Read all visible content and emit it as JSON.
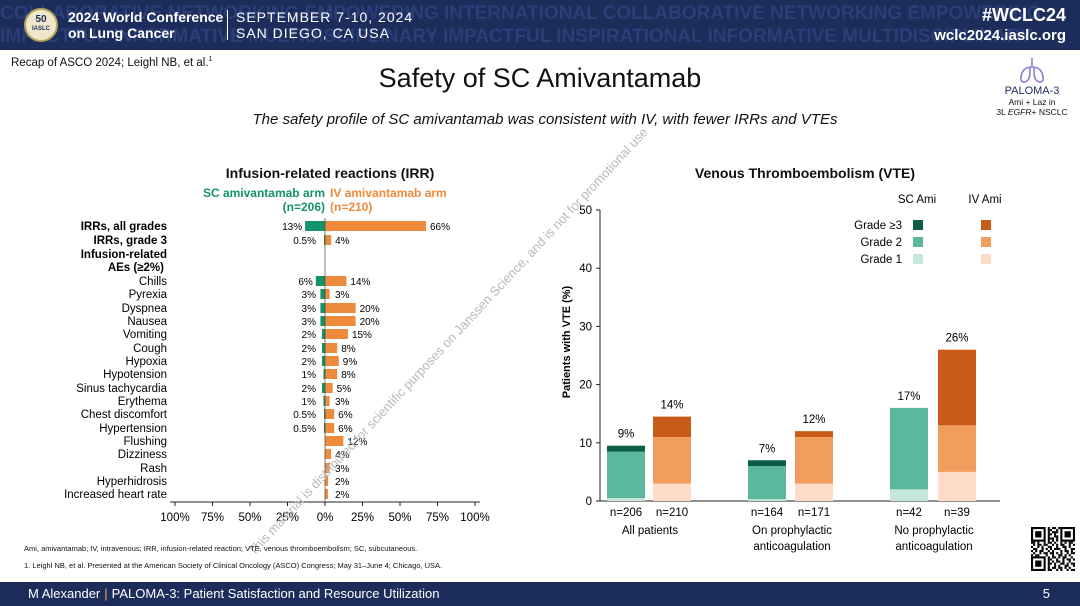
{
  "banner": {
    "logo_top": "50",
    "logo_bottom": "IASLC",
    "conference_name_l1": "2024 World Conference",
    "conference_name_l2": "on Lung Cancer",
    "dates_l1": "SEPTEMBER 7-10, 2024",
    "dates_l2": "SAN DIEGO, CA USA",
    "hashtag": "#WCLC24",
    "url": "wclc2024.iaslc.org",
    "background_words_l1": "COLLABORATIVE NETWORKING EMPOWERING INTERNATIONAL COLLABORATIVE NETWORKING EMPOWERING",
    "background_words_l2": "IMPACTFUL INFORMATIVE MULTIDISCIPLINARY IMPACTFUL INSPIRATIONAL INFORMATIVE MULTIDISCIPLINARY"
  },
  "recap": {
    "text": "Recap of ASCO 2024; Leighl NB, et al.",
    "ref": "1"
  },
  "title": "Safety of SC Amivantamab",
  "subtitle": "The safety profile of SC amivantamab was consistent with IV, with fewer IRRs and VTEs",
  "paloma": {
    "name": "PALOMA-3",
    "line1": "Ami + Laz in",
    "line2_prefix": "3L ",
    "line2_italic": "EGFR",
    "line2_suffix": "+ NSCLC"
  },
  "irr": {
    "title": "Infusion-related reactions (IRR)",
    "sc_label_l1": "SC amivantamab arm",
    "sc_label_l2": "(n=206)",
    "iv_label_l1": "IV amivantamab arm",
    "iv_label_l2": "(n=210)",
    "group_label_l1": "Infusion-related",
    "group_label_l2": "AEs (≥2%)",
    "rows": [
      {
        "label": "IRRs, all grades",
        "sc": 13,
        "iv": 66,
        "sc_label": "13%",
        "iv_label": "66%",
        "bold": true
      },
      {
        "label": "IRRs, grade 3",
        "sc": 0.5,
        "iv": 4,
        "sc_label": "0.5%",
        "iv_label": "4%",
        "bold": true
      },
      {
        "label": "Chills",
        "sc": 6,
        "iv": 14,
        "sc_label": "6%",
        "iv_label": "14%",
        "bold": false
      },
      {
        "label": "Pyrexia",
        "sc": 3,
        "iv": 3,
        "sc_label": "3%",
        "iv_label": "3%",
        "bold": false
      },
      {
        "label": "Dyspnea",
        "sc": 3,
        "iv": 20,
        "sc_label": "3%",
        "iv_label": "20%",
        "bold": false
      },
      {
        "label": "Nausea",
        "sc": 3,
        "iv": 20,
        "sc_label": "3%",
        "iv_label": "20%",
        "bold": false
      },
      {
        "label": "Vomiting",
        "sc": 2,
        "iv": 15,
        "sc_label": "2%",
        "iv_label": "15%",
        "bold": false
      },
      {
        "label": "Cough",
        "sc": 2,
        "iv": 8,
        "sc_label": "2%",
        "iv_label": "8%",
        "bold": false
      },
      {
        "label": "Hypoxia",
        "sc": 2,
        "iv": 9,
        "sc_label": "2%",
        "iv_label": "9%",
        "bold": false
      },
      {
        "label": "Hypotension",
        "sc": 1,
        "iv": 8,
        "sc_label": "1%",
        "iv_label": "8%",
        "bold": false
      },
      {
        "label": "Sinus tachycardia",
        "sc": 2,
        "iv": 5,
        "sc_label": "2%",
        "iv_label": "5%",
        "bold": false
      },
      {
        "label": "Erythema",
        "sc": 1,
        "iv": 3,
        "sc_label": "1%",
        "iv_label": "3%",
        "bold": false
      },
      {
        "label": "Chest discomfort",
        "sc": 0.5,
        "iv": 6,
        "sc_label": "0.5%",
        "iv_label": "6%",
        "bold": false
      },
      {
        "label": "Hypertension",
        "sc": 0.5,
        "iv": 6,
        "sc_label": "0.5%",
        "iv_label": "6%",
        "bold": false
      },
      {
        "label": "Flushing",
        "sc": 0,
        "iv": 12,
        "sc_label": "",
        "iv_label": "12%",
        "bold": false
      },
      {
        "label": "Dizziness",
        "sc": 0,
        "iv": 4,
        "sc_label": "",
        "iv_label": "4%",
        "bold": false
      },
      {
        "label": "Rash",
        "sc": 0,
        "iv": 3,
        "sc_label": "",
        "iv_label": "3%",
        "bold": false
      },
      {
        "label": "Hyperhidrosis",
        "sc": 0,
        "iv": 2,
        "sc_label": "",
        "iv_label": "2%",
        "bold": false
      },
      {
        "label": "Increased heart rate",
        "sc": 0,
        "iv": 2,
        "sc_label": "",
        "iv_label": "2%",
        "bold": false
      }
    ],
    "xaxis_labels": [
      "100%",
      "75%",
      "50%",
      "25%",
      "0%",
      "25%",
      "50%",
      "75%",
      "100%"
    ],
    "colors": {
      "sc": "#14926b",
      "iv": "#ee8a3c"
    }
  },
  "vte": {
    "title": "Venous Thromboembolism (VTE)",
    "ylabel": "Patients with VTE (%)",
    "yticks": [
      "0",
      "10",
      "20",
      "30",
      "40",
      "50"
    ],
    "legend": {
      "sc_head": "SC Ami",
      "iv_head": "IV Ami",
      "grades": [
        "Grade ≥3",
        "Grade 2",
        "Grade 1"
      ]
    },
    "colors": {
      "sc": [
        "#0d5c48",
        "#5bb89d",
        "#c7e6dd"
      ],
      "iv": [
        "#c95a17",
        "#f19d5e",
        "#fcdcc6"
      ]
    },
    "groups": [
      {
        "label_l1": "All patients",
        "label_l2": "",
        "sc": {
          "n": "n=206",
          "total_label": "9%",
          "grade1": 0.5,
          "grade2": 8.0,
          "grade3": 1.0
        },
        "iv": {
          "n": "n=210",
          "total_label": "14%",
          "grade1": 3.0,
          "grade2": 8.0,
          "grade3": 3.5
        }
      },
      {
        "label_l1": "On prophylactic",
        "label_l2": "anticoagulation",
        "sc": {
          "n": "n=164",
          "total_label": "7%",
          "grade1": 0.3,
          "grade2": 5.7,
          "grade3": 1.0
        },
        "iv": {
          "n": "n=171",
          "total_label": "12%",
          "grade1": 3.0,
          "grade2": 8.0,
          "grade3": 1.0
        }
      },
      {
        "label_l1": "No prophylactic",
        "label_l2": "anticoagulation",
        "sc": {
          "n": "n=42",
          "total_label": "17%",
          "grade1": 2.0,
          "grade2": 14.0,
          "grade3": 0
        },
        "iv": {
          "n": "n=39",
          "total_label": "26%",
          "grade1": 5.0,
          "grade2": 8.0,
          "grade3": 13.0
        }
      }
    ]
  },
  "chart_data": [
    {
      "type": "bar",
      "orientation": "horizontal-diverging",
      "title": "Infusion-related reactions (IRR)",
      "categories": [
        "IRRs, all grades",
        "IRRs, grade 3",
        "Chills",
        "Pyrexia",
        "Dyspnea",
        "Nausea",
        "Vomiting",
        "Cough",
        "Hypoxia",
        "Hypotension",
        "Sinus tachycardia",
        "Erythema",
        "Chest discomfort",
        "Hypertension",
        "Flushing",
        "Dizziness",
        "Rash",
        "Hyperhidrosis",
        "Increased heart rate"
      ],
      "series": [
        {
          "name": "SC amivantamab arm (n=206)",
          "values": [
            13,
            0.5,
            6,
            3,
            3,
            3,
            2,
            2,
            2,
            1,
            2,
            1,
            0.5,
            0.5,
            0,
            0,
            0,
            0,
            0
          ]
        },
        {
          "name": "IV amivantamab arm (n=210)",
          "values": [
            66,
            4,
            14,
            3,
            20,
            20,
            15,
            8,
            9,
            8,
            5,
            3,
            6,
            6,
            12,
            4,
            3,
            2,
            2
          ]
        }
      ],
      "xlim": [
        -100,
        100
      ],
      "grid": false
    },
    {
      "type": "bar",
      "stacked": true,
      "title": "Venous Thromboembolism (VTE)",
      "ylabel": "Patients with VTE (%)",
      "ylim": [
        0,
        50
      ],
      "categories": [
        "All patients",
        "On prophylactic anticoagulation",
        "No prophylactic anticoagulation"
      ],
      "totals": {
        "SC Ami": [
          9,
          7,
          17
        ],
        "IV Ami": [
          14,
          12,
          26
        ]
      },
      "legend_position": "top-right",
      "grid": false
    }
  ],
  "footnotes": {
    "abbrev": "Ami, amivantamab; IV, intravenous; IRR, infusion-related reaction; VTE, venous thromboembolism; SC, subcutaneous.",
    "ref_num": "1",
    "ref_text": ". Leighl NB, et al. Presented at the American Society of Clinical Oncology (ASCO) Congress; May 31–June 4; Chicago, USA."
  },
  "watermark": "This material is distributed for scientific purposes on Janssen Science, and is not for promotional use",
  "footer": {
    "presenter": "M Alexander",
    "talk": "PALOMA-3: Patient Satisfaction and Resource Utilization",
    "page": "5"
  }
}
